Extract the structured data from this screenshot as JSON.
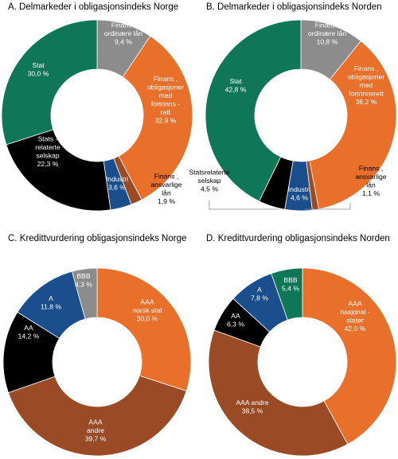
{
  "colors": {
    "green": "#0f7758",
    "grey": "#8c8c8c",
    "orange": "#e8702a",
    "brown": "#9a4a24",
    "blue": "#1b4e8c",
    "black": "#000000",
    "white": "#ffffff"
  },
  "chart_data": [
    {
      "type": "pie",
      "title": "A. Delmarkeder i obligasjonsindeks Norge",
      "slices": [
        {
          "label": "Finans, ordinære lån",
          "value": 9.4,
          "color": "grey",
          "text": [
            "Finans ,",
            "ordinære lån",
            "9,4 %"
          ]
        },
        {
          "label": "Finans, obligasjoner med fortrinnsrett",
          "value": 32.9,
          "color": "orange",
          "text": [
            "Finans ,",
            "obligasjoner",
            "med",
            "fortrinns -",
            "rett",
            "32,9 %"
          ]
        },
        {
          "label": "Finans, ansvarlige lån",
          "value": 1.9,
          "color": "brown",
          "text": [
            "Finans ,",
            "ansvarlige",
            "lån",
            "1,9 %"
          ]
        },
        {
          "label": "Industri",
          "value": 3.6,
          "color": "blue",
          "text": [
            "Industri",
            "3,6 %"
          ]
        },
        {
          "label": "Statsrelaterte selskap",
          "value": 22.3,
          "color": "black",
          "text": [
            "Stats -",
            "relaterte",
            "selskap",
            "22,3 %"
          ]
        },
        {
          "label": "Stat",
          "value": 30.0,
          "color": "green",
          "text": [
            "Stat",
            "30,0 %"
          ]
        }
      ]
    },
    {
      "type": "pie",
      "title": "B. Delmarkeder i obligasjonsindeks Norden",
      "slices": [
        {
          "label": "Finans, ordinære lån",
          "value": 10.8,
          "color": "grey",
          "text": [
            "Finans ,",
            "ordinære lån",
            "10,8 %"
          ]
        },
        {
          "label": "Finans, obligasjoner med fortrinnsrett",
          "value": 36.2,
          "color": "orange",
          "text": [
            "Finans ,",
            "obligasjoner",
            "med",
            "fortrinnsrett",
            "36,2 %"
          ]
        },
        {
          "label": "Finans, ansvarlige lån",
          "value": 1.1,
          "color": "brown",
          "text": [
            "Finans ,",
            "ansvarlige",
            "lån",
            "1,1 %"
          ]
        },
        {
          "label": "Industri",
          "value": 4.6,
          "color": "blue",
          "text": [
            "Industri",
            "4,6 %"
          ]
        },
        {
          "label": "Statsrelaterte selskap",
          "value": 4.5,
          "color": "black",
          "text": [
            "Statsrelaterte",
            "selskap",
            "4,5 %"
          ]
        },
        {
          "label": "Stat",
          "value": 42.8,
          "color": "green",
          "text": [
            "Stat",
            "42,8 %"
          ]
        }
      ]
    },
    {
      "type": "pie",
      "title": "C. Kredittvurdering obligasjonsindeks Norge",
      "slices": [
        {
          "label": "AAA norsk stat",
          "value": 30.0,
          "color": "orange",
          "text": [
            "AAA",
            "norsk stat",
            "30,0 %"
          ]
        },
        {
          "label": "AAA andre",
          "value": 39.7,
          "color": "brown",
          "text": [
            "AAA",
            "andre",
            "39,7 %"
          ]
        },
        {
          "label": "AA",
          "value": 14.2,
          "color": "black",
          "text": [
            "AA",
            "14,2 %"
          ]
        },
        {
          "label": "A",
          "value": 11.8,
          "color": "blue",
          "text": [
            "A",
            "11,8 %"
          ]
        },
        {
          "label": "BBB",
          "value": 4.3,
          "color": "grey",
          "text": [
            "BBB",
            "4,3 %"
          ]
        }
      ]
    },
    {
      "type": "pie",
      "title": "D. Kredittvurdering obligasjonsindeks Norden",
      "slices": [
        {
          "label": "AAA nasjonalstater",
          "value": 42.0,
          "color": "orange",
          "text": [
            "AAA",
            "nasjonal -",
            "stater",
            "42,0 %"
          ]
        },
        {
          "label": "AAA andre",
          "value": 38.5,
          "color": "brown",
          "text": [
            "AAA andre",
            "38,5 %"
          ]
        },
        {
          "label": "AA",
          "value": 6.3,
          "color": "black",
          "text": [
            "AA",
            "6,3 %"
          ]
        },
        {
          "label": "A",
          "value": 7.8,
          "color": "blue",
          "text": [
            "A",
            "7,8 %"
          ]
        },
        {
          "label": "BBB",
          "value": 5.4,
          "color": "green",
          "text": [
            "BBB",
            "5,4 %"
          ]
        }
      ]
    }
  ]
}
